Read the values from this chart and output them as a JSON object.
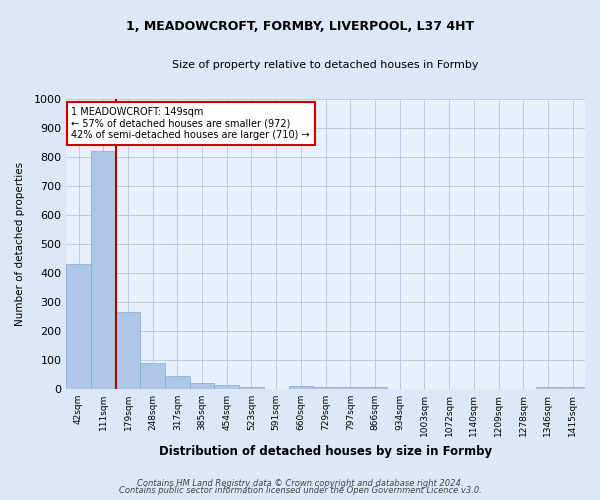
{
  "title": "1, MEADOWCROFT, FORMBY, LIVERPOOL, L37 4HT",
  "subtitle": "Size of property relative to detached houses in Formby",
  "xlabel": "Distribution of detached houses by size in Formby",
  "ylabel": "Number of detached properties",
  "categories": [
    "42sqm",
    "111sqm",
    "179sqm",
    "248sqm",
    "317sqm",
    "385sqm",
    "454sqm",
    "523sqm",
    "591sqm",
    "660sqm",
    "729sqm",
    "797sqm",
    "866sqm",
    "934sqm",
    "1003sqm",
    "1072sqm",
    "1140sqm",
    "1209sqm",
    "1278sqm",
    "1346sqm",
    "1415sqm"
  ],
  "values": [
    430,
    820,
    265,
    90,
    46,
    22,
    16,
    8,
    0,
    10,
    8,
    8,
    8,
    0,
    0,
    0,
    0,
    0,
    0,
    8,
    7
  ],
  "bar_color": "#aec6e8",
  "bar_edge_color": "#7aaed0",
  "vline_x": 1.5,
  "vline_color": "#aa0000",
  "annotation_text": "1 MEADOWCROFT: 149sqm\n← 57% of detached houses are smaller (972)\n42% of semi-detached houses are larger (710) →",
  "annotation_box_color": "white",
  "annotation_box_edge_color": "#cc0000",
  "ylim": [
    0,
    1000
  ],
  "yticks": [
    0,
    100,
    200,
    300,
    400,
    500,
    600,
    700,
    800,
    900,
    1000
  ],
  "footer_line1": "Contains HM Land Registry data © Crown copyright and database right 2024.",
  "footer_line2": "Contains public sector information licensed under the Open Government Licence v3.0.",
  "bg_color": "#dce8f8",
  "plot_bg_color": "#e8f0fb",
  "grid_color": "#b8cce8"
}
